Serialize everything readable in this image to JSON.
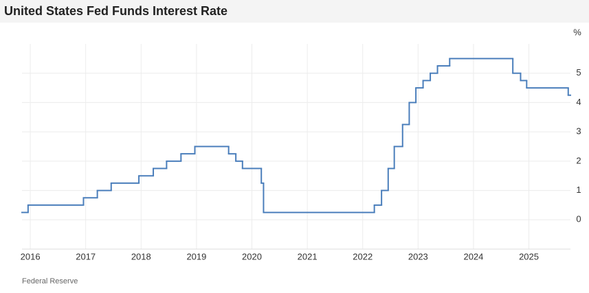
{
  "chart_data": {
    "type": "line",
    "step": true,
    "title": "United States Fed Funds Interest Rate",
    "y_label": "%",
    "source": "Federal Reserve",
    "x": [
      2015.85,
      2015.96,
      2016.96,
      2017.21,
      2017.46,
      2017.96,
      2018.22,
      2018.46,
      2018.72,
      2018.97,
      2019.58,
      2019.71,
      2019.83,
      2020.17,
      2020.21,
      2022.21,
      2022.34,
      2022.46,
      2022.57,
      2022.72,
      2022.84,
      2022.96,
      2023.09,
      2023.22,
      2023.35,
      2023.57,
      2024.71,
      2024.85,
      2024.96,
      2025.71
    ],
    "values": [
      0.25,
      0.5,
      0.75,
      1.0,
      1.25,
      1.5,
      1.75,
      2.0,
      2.25,
      2.5,
      2.25,
      2.0,
      1.75,
      1.25,
      0.25,
      0.5,
      1.0,
      1.75,
      2.5,
      3.25,
      4.0,
      4.5,
      4.75,
      5.0,
      5.25,
      5.5,
      5.0,
      4.75,
      4.5,
      4.25
    ],
    "color": "#4a7ebb",
    "xlim": [
      2015.85,
      2025.75
    ],
    "xticks": [
      2016,
      2017,
      2018,
      2019,
      2020,
      2021,
      2022,
      2023,
      2024,
      2025
    ],
    "ylim": [
      -1,
      6
    ],
    "yticks": [
      0,
      1,
      2,
      3,
      4,
      5
    ],
    "grid": true
  }
}
